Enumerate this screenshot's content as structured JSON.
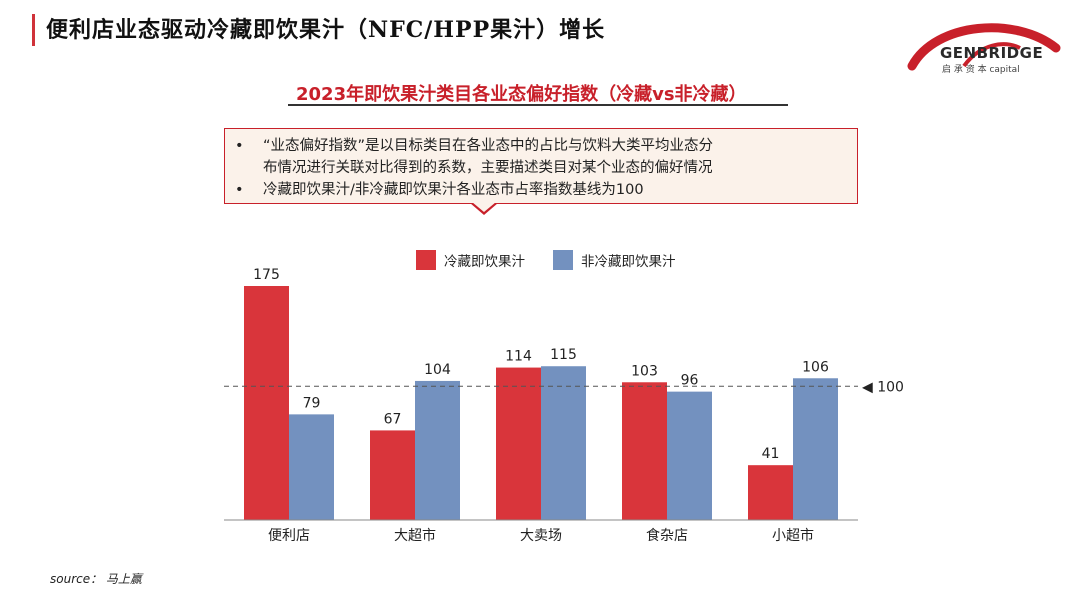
{
  "header": {
    "title": "便利店业态驱动冷藏即饮果汁（NFC/HPP果汁）增长"
  },
  "logo": {
    "name": "GENBRIDGE",
    "subtitle": "启 承 资 本 capital"
  },
  "colors": {
    "accent": "#d0323a",
    "series_chilled": "#d9353b",
    "series_ambient": "#7391bf",
    "note_border": "#c8202a",
    "note_bg": "#fbf2ea"
  },
  "chart_title": "2023年即饮果汁类目各业态偏好指数（冷藏vs非冷藏）",
  "notes": {
    "bullet_1_line_1": "“业态偏好指数”是以目标类目在各业态中的占比与饮料大类平均业态分",
    "bullet_1_line_2": "布情况进行关联对比得到的系数，主要描述类目对某个业态的偏好情况",
    "bullet_2": "冷藏即饮果汁/非冷藏即饮果汁各业态市占率指数基线为100"
  },
  "chart_data": {
    "type": "bar",
    "title": "2023年即饮果汁类目各业态偏好指数（冷藏vs非冷藏）",
    "categories": [
      "便利店",
      "大超市",
      "大卖场",
      "食杂店",
      "小超市"
    ],
    "series": [
      {
        "name": "冷藏即饮果汁",
        "values": [
          175,
          67,
          114,
          103,
          41
        ]
      },
      {
        "name": "非冷藏即饮果汁",
        "values": [
          79,
          104,
          115,
          96,
          106
        ]
      }
    ],
    "baseline": {
      "value": 100,
      "label": "◀ 100"
    },
    "ylim": [
      0,
      190
    ],
    "legend_position": "top",
    "grid": false,
    "xlabel": "",
    "ylabel": ""
  },
  "source": "source： 马上赢"
}
